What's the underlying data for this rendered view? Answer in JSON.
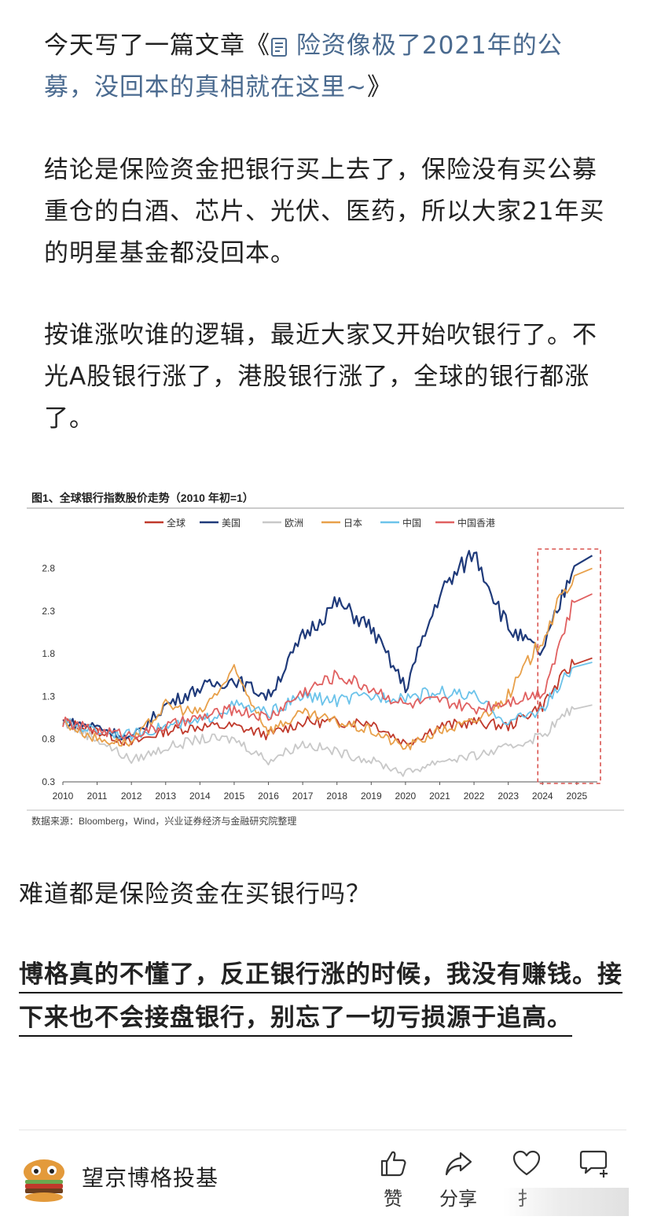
{
  "article": {
    "p1_prefix": "今天写了一篇文章《",
    "p1_link": "险资像极了2021年的公募，没回本的真相就在这里~",
    "p1_suffix": "》",
    "p2": "结论是保险资金把银行买上去了，保险没有买公募重仓的白酒、芯片、光伏、医药，所以大家21年买的明星基金都没回本。",
    "p3": "按谁涨吹谁的逻辑，最近大家又开始吹银行了。不光A股银行涨了，港股银行涨了，全球的银行都涨了。",
    "question": "难道都是保险资金在买银行吗？",
    "bold_text": "博格真的不懂了，反正银行涨的时候，我没有赚钱。接下来也不会接盘银行，别忘了一切亏损源于追高。"
  },
  "footer": {
    "author_name": "望京博格投基",
    "actions": {
      "like": "赞",
      "share": "分享",
      "fav": "扌",
      "comment": ""
    }
  },
  "colors": {
    "global": "#c0392b",
    "us": "#1f3a7a",
    "europe": "#c8c8c8",
    "japan": "#e8a04a",
    "china": "#6cc3ea",
    "hongkong": "#e06060",
    "highlight_box": "#d9534f"
  },
  "chart_data": {
    "type": "line",
    "title": "图1、全球银行指数股价走势（2010 年初=1）",
    "source": "数据来源：Bloomberg，Wind，兴业证券经济与金融研究院整理",
    "legend": [
      "全球",
      "美国",
      "欧洲",
      "日本",
      "中国",
      "中国香港"
    ],
    "x": [
      2010,
      2011,
      2012,
      2013,
      2014,
      2015,
      2016,
      2017,
      2018,
      2019,
      2020,
      2021,
      2022,
      2023,
      2024,
      2025
    ],
    "ylim": [
      0.3,
      3.1
    ],
    "yticks": [
      "0.3",
      "0.8",
      "1.3",
      "1.8",
      "2.3",
      "2.8"
    ],
    "highlight_range": [
      2024,
      2025.6
    ],
    "series": [
      {
        "name": "全球",
        "values": [
          1.0,
          0.9,
          0.75,
          0.9,
          0.95,
          0.95,
          0.85,
          1.0,
          1.0,
          1.0,
          0.75,
          0.95,
          1.0,
          0.95,
          1.2,
          1.75
        ]
      },
      {
        "name": "美国",
        "values": [
          1.0,
          0.95,
          0.8,
          1.2,
          1.4,
          1.5,
          1.3,
          2.0,
          2.4,
          2.1,
          1.4,
          2.5,
          3.0,
          2.1,
          1.8,
          2.95
        ]
      },
      {
        "name": "欧洲",
        "values": [
          1.0,
          0.8,
          0.55,
          0.7,
          0.8,
          0.8,
          0.55,
          0.75,
          0.65,
          0.55,
          0.4,
          0.55,
          0.6,
          0.7,
          0.85,
          1.2
        ]
      },
      {
        "name": "日本",
        "values": [
          1.0,
          0.8,
          0.75,
          1.2,
          1.1,
          1.6,
          0.9,
          1.1,
          1.0,
          0.9,
          0.7,
          0.9,
          1.0,
          1.3,
          2.0,
          2.8
        ]
      },
      {
        "name": "中国",
        "values": [
          1.0,
          0.9,
          0.85,
          0.95,
          1.0,
          1.2,
          1.1,
          1.3,
          1.25,
          1.3,
          1.3,
          1.35,
          1.3,
          1.0,
          1.15,
          1.7
        ]
      },
      {
        "name": "中国香港",
        "values": [
          1.0,
          0.9,
          0.85,
          0.95,
          1.05,
          1.15,
          1.05,
          1.35,
          1.55,
          1.4,
          1.2,
          1.25,
          1.15,
          1.25,
          1.35,
          2.5
        ]
      }
    ]
  }
}
